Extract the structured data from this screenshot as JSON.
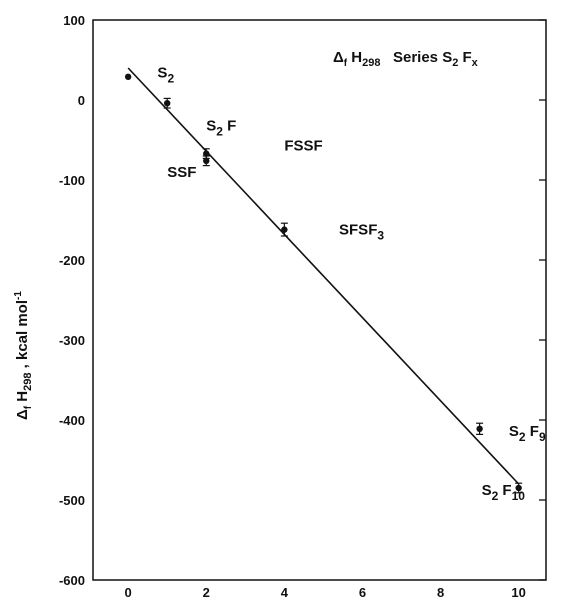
{
  "chart_data": {
    "type": "scatter",
    "title": {
      "delta": "Δ",
      "f": "f",
      "h": " H",
      "sub": "298",
      "rest": "   Series S",
      "s2": "2",
      "f2": " F",
      "x": "x"
    },
    "ylabel": {
      "delta": "Δ",
      "f": "f",
      "h": " H",
      "sub": "298",
      "unit": " , kcal mol",
      "sup": "-1"
    },
    "xlim": [
      -0.9,
      10.7
    ],
    "ylim": [
      -600,
      100
    ],
    "xticks": [
      "0",
      "2",
      "4",
      "6",
      "8",
      "10"
    ],
    "xtick_values": [
      0,
      2,
      4,
      6,
      8,
      10
    ],
    "yticks": [
      "100",
      "0",
      "-100",
      "-200",
      "-300",
      "-400",
      "-500",
      "-600"
    ],
    "ytick_values": [
      100,
      0,
      -100,
      -200,
      -300,
      -400,
      -500,
      -600
    ],
    "points": [
      {
        "x": 0,
        "y": 29,
        "err": 0
      },
      {
        "x": 1,
        "y": -4,
        "err": 6
      },
      {
        "x": 2,
        "y": -67,
        "err": 6
      },
      {
        "x": 2,
        "y": -76,
        "err": 6
      },
      {
        "x": 4,
        "y": -162,
        "err": 8
      },
      {
        "x": 9,
        "y": -411,
        "err": 7
      },
      {
        "x": 10,
        "y": -485,
        "err": 6
      }
    ],
    "fit_line": {
      "x": [
        0,
        10
      ],
      "y": [
        40,
        -480
      ]
    },
    "labels": [
      {
        "base": "S",
        "sub": "2",
        "tail": "",
        "x": 0.75,
        "y": 28
      },
      {
        "base": "S",
        "sub": "2",
        "tail": " F",
        "x": 2.0,
        "y": -38
      },
      {
        "base": "SSF",
        "sub": "",
        "tail": "",
        "x": 1.0,
        "y": -96
      },
      {
        "base": "FSSF",
        "sub": "",
        "tail": "",
        "x": 4.0,
        "y": -63
      },
      {
        "base": "SFSF",
        "sub": "3",
        "tail": "",
        "x": 5.4,
        "y": -168
      },
      {
        "base": "S",
        "sub": "2",
        "tail": " F",
        "sub2": "9",
        "x": 9.75,
        "y": -420
      },
      {
        "base": "S",
        "sub": "2",
        "tail": " F",
        "sub2": "10",
        "x": 9.05,
        "y": -494
      }
    ],
    "grid": false
  }
}
